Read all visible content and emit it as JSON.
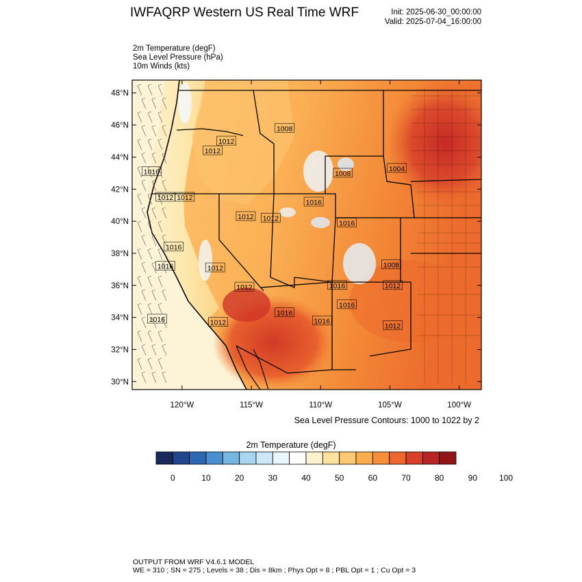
{
  "header": {
    "title": "IWFAQRP Western US Real Time WRF",
    "init": "Init: 2025-06-30_00:00:00",
    "valid": "Valid: 2025-07-04_16:00:00"
  },
  "fields": [
    "2m Temperature   (degF)",
    "Sea Level Pressure   (hPa)",
    "10m Winds   (kts)"
  ],
  "map": {
    "lat_range": [
      29.5,
      48.8
    ],
    "lon_range": [
      -123.6,
      -98.4
    ],
    "lat_ticks": [
      "48°N",
      "46°N",
      "44°N",
      "42°N",
      "40°N",
      "38°N",
      "36°N",
      "34°N",
      "32°N",
      "30°N"
    ],
    "lat_values": [
      48,
      46,
      44,
      42,
      40,
      38,
      36,
      34,
      32,
      30
    ],
    "lon_ticks": [
      "120°W",
      "115°W",
      "110°W",
      "105°W",
      "100°W"
    ],
    "lon_values": [
      -120,
      -115,
      -110,
      -105,
      -100
    ],
    "pressure_labels": [
      {
        "text": "1016",
        "lon": -122.2,
        "lat": 43.1
      },
      {
        "text": "1012",
        "lon": -121.2,
        "lat": 41.5
      },
      {
        "text": "1012",
        "lon": -119.8,
        "lat": 41.5
      },
      {
        "text": "1012",
        "lon": -117.8,
        "lat": 44.4
      },
      {
        "text": "1012",
        "lon": -116.8,
        "lat": 45.0
      },
      {
        "text": "1008",
        "lon": -112.6,
        "lat": 45.8
      },
      {
        "text": "1012",
        "lon": -115.4,
        "lat": 40.3
      },
      {
        "text": "1012",
        "lon": -113.6,
        "lat": 40.2
      },
      {
        "text": "1016",
        "lon": -110.5,
        "lat": 41.2
      },
      {
        "text": "1008",
        "lon": -108.4,
        "lat": 43.0
      },
      {
        "text": "1004",
        "lon": -104.5,
        "lat": 43.3
      },
      {
        "text": "1016",
        "lon": -108.1,
        "lat": 39.9
      },
      {
        "text": "1016",
        "lon": -120.6,
        "lat": 38.4
      },
      {
        "text": "1016",
        "lon": -121.2,
        "lat": 37.2
      },
      {
        "text": "1012",
        "lon": -117.6,
        "lat": 37.1
      },
      {
        "text": "1012",
        "lon": -115.5,
        "lat": 35.9
      },
      {
        "text": "1008",
        "lon": -104.9,
        "lat": 37.3
      },
      {
        "text": "1016",
        "lon": -108.8,
        "lat": 36.0
      },
      {
        "text": "1012",
        "lon": -104.8,
        "lat": 36.0
      },
      {
        "text": "1016",
        "lon": -108.1,
        "lat": 34.8
      },
      {
        "text": "1016",
        "lon": -112.6,
        "lat": 34.3
      },
      {
        "text": "1016",
        "lon": -109.9,
        "lat": 33.8
      },
      {
        "text": "1016",
        "lon": -121.8,
        "lat": 33.9
      },
      {
        "text": "1012",
        "lon": -117.4,
        "lat": 33.7
      },
      {
        "text": "1012",
        "lon": -104.8,
        "lat": 33.5
      }
    ]
  },
  "contour_note": "Sea Level Pressure Contours: 1000 to 1022 by 2",
  "colorbar": {
    "title": "2m Temperature  (degF)",
    "colors": [
      "#1a2a5c",
      "#21468b",
      "#2e66b2",
      "#4a8fcf",
      "#75b6e3",
      "#a8d5f1",
      "#cde8f8",
      "#eaf5fc",
      "#ffffff",
      "#fbf3d0",
      "#fde2a0",
      "#fdc872",
      "#fbad4d",
      "#f68e3a",
      "#ec6830",
      "#d9402a",
      "#b92424",
      "#8f1719"
    ],
    "labels": [
      "0",
      "10",
      "20",
      "30",
      "40",
      "50",
      "60",
      "70",
      "80",
      "90",
      "100"
    ]
  },
  "footer": {
    "line1": "OUTPUT FROM WRF V4.6.1 MODEL",
    "line2": "WE = 310 ; SN = 275 ; Levels = 38 ; Dis = 8km ; Phys Opt = 8 ; PBL Opt = 1 ; Cu Opt = 3"
  }
}
